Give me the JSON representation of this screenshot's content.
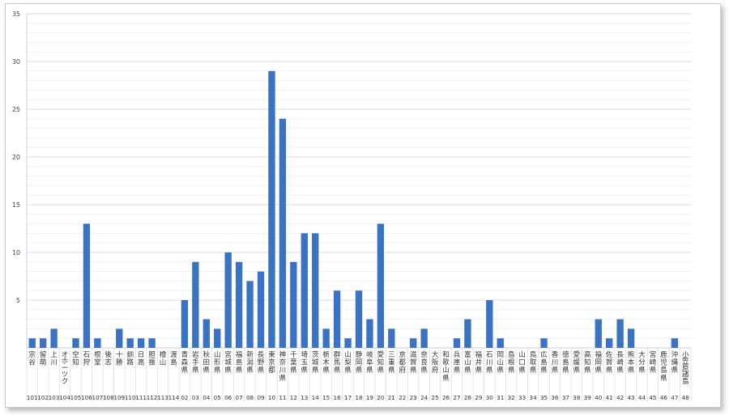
{
  "chart_data": {
    "type": "bar",
    "ylim": [
      0,
      35
    ],
    "yticks": [
      5,
      10,
      15,
      20,
      25,
      30,
      35
    ],
    "grid": true,
    "minor_grid_step": 1,
    "bar_color": "#3a72c4",
    "categories": [
      {
        "name": "宗谷",
        "code": "101"
      },
      {
        "name": "留萌",
        "code": "102"
      },
      {
        "name": "上川",
        "code": "103"
      },
      {
        "name": "オホーツク",
        "code": "104"
      },
      {
        "name": "空知",
        "code": "105"
      },
      {
        "name": "石狩",
        "code": "106"
      },
      {
        "name": "根室",
        "code": "107"
      },
      {
        "name": "後志",
        "code": "108"
      },
      {
        "name": "十勝",
        "code": "109"
      },
      {
        "name": "釧路",
        "code": "110"
      },
      {
        "name": "日高",
        "code": "111"
      },
      {
        "name": "胆振",
        "code": "112"
      },
      {
        "name": "檜山",
        "code": "113"
      },
      {
        "name": "渡島",
        "code": "114"
      },
      {
        "name": "青森県",
        "code": "02"
      },
      {
        "name": "岩手県",
        "code": "03"
      },
      {
        "name": "秋田県",
        "code": "04"
      },
      {
        "name": "山形県",
        "code": "05"
      },
      {
        "name": "宮城県",
        "code": "06"
      },
      {
        "name": "福島県",
        "code": "07"
      },
      {
        "name": "新潟県",
        "code": "08"
      },
      {
        "name": "長野県",
        "code": "09"
      },
      {
        "name": "東京都",
        "code": "10"
      },
      {
        "name": "神奈川県",
        "code": "11"
      },
      {
        "name": "千葉県",
        "code": "12"
      },
      {
        "name": "埼玉県",
        "code": "13"
      },
      {
        "name": "茨城県",
        "code": "14"
      },
      {
        "name": "栃木県",
        "code": "15"
      },
      {
        "name": "群馬県",
        "code": "16"
      },
      {
        "name": "山梨県",
        "code": "17"
      },
      {
        "name": "静岡県",
        "code": "18"
      },
      {
        "name": "岐阜県",
        "code": "19"
      },
      {
        "name": "愛知県",
        "code": "20"
      },
      {
        "name": "三重県",
        "code": "21"
      },
      {
        "name": "京都府",
        "code": "22"
      },
      {
        "name": "滋賀県",
        "code": "23"
      },
      {
        "name": "奈良県",
        "code": "24"
      },
      {
        "name": "大阪府",
        "code": "25"
      },
      {
        "name": "和歌山県",
        "code": "26"
      },
      {
        "name": "兵庫県",
        "code": "27"
      },
      {
        "name": "富山県",
        "code": "28"
      },
      {
        "name": "福井県",
        "code": "29"
      },
      {
        "name": "石川県",
        "code": "30"
      },
      {
        "name": "岡山県",
        "code": "31"
      },
      {
        "name": "島根県",
        "code": "32"
      },
      {
        "name": "山口県",
        "code": "33"
      },
      {
        "name": "鳥取県",
        "code": "34"
      },
      {
        "name": "広島県",
        "code": "35"
      },
      {
        "name": "香川県",
        "code": "36"
      },
      {
        "name": "徳島県",
        "code": "37"
      },
      {
        "name": "愛媛県",
        "code": "38"
      },
      {
        "name": "高知県",
        "code": "39"
      },
      {
        "name": "福岡県",
        "code": "40"
      },
      {
        "name": "佐賀県",
        "code": "41"
      },
      {
        "name": "長崎県",
        "code": "42"
      },
      {
        "name": "熊本県",
        "code": "43"
      },
      {
        "name": "大分県",
        "code": "44"
      },
      {
        "name": "宮崎県",
        "code": "45"
      },
      {
        "name": "鹿児島県",
        "code": "46"
      },
      {
        "name": "沖縄県",
        "code": "47"
      },
      {
        "name": "小笠原諸島",
        "code": "48"
      }
    ],
    "values": [
      1,
      1,
      2,
      0,
      1,
      13,
      1,
      0,
      2,
      1,
      1,
      1,
      0,
      0,
      5,
      9,
      3,
      2,
      10,
      9,
      7,
      8,
      29,
      24,
      9,
      12,
      12,
      2,
      6,
      1,
      6,
      3,
      13,
      2,
      0,
      1,
      2,
      0,
      0,
      1,
      3,
      0,
      5,
      1,
      0,
      0,
      0,
      1,
      0,
      0,
      0,
      0,
      3,
      1,
      3,
      2,
      0,
      0,
      0,
      1,
      0
    ]
  }
}
